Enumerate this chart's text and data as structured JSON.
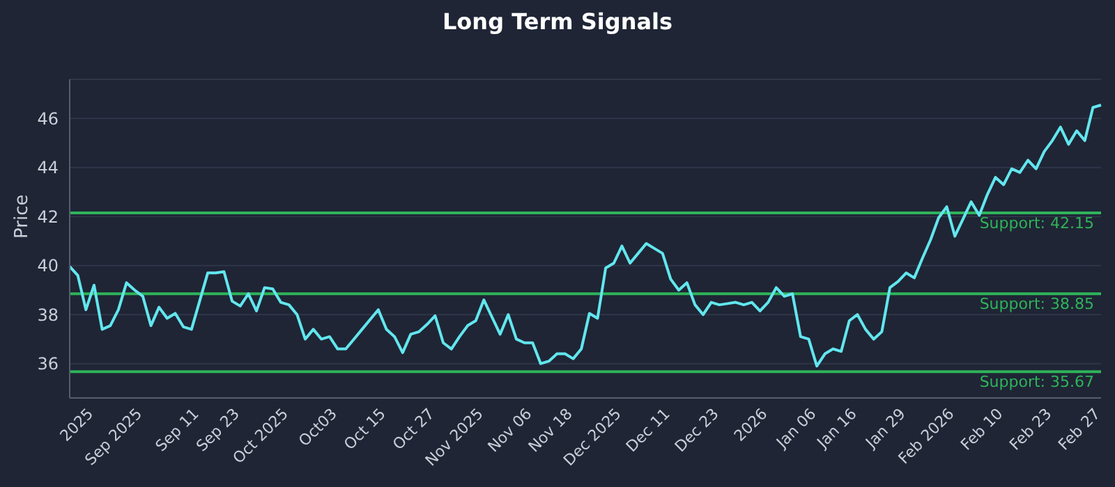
{
  "chart_data": {
    "type": "line",
    "title": "Long Term Signals",
    "ylabel": "Price",
    "categories": [
      null,
      null,
      null,
      "2025",
      null,
      null,
      null,
      null,
      null,
      "Sep 2025",
      null,
      null,
      null,
      null,
      null,
      null,
      "Sep 11",
      null,
      null,
      null,
      null,
      "Sep 23",
      null,
      null,
      null,
      null,
      null,
      "Oct 2025",
      null,
      null,
      null,
      null,
      null,
      "Oct03",
      null,
      null,
      null,
      null,
      null,
      "Oct 15",
      null,
      null,
      null,
      null,
      null,
      "Oct 27",
      null,
      null,
      null,
      null,
      null,
      "Nov 2025",
      null,
      null,
      null,
      null,
      null,
      "Nov 06",
      null,
      null,
      null,
      null,
      "Nov 18",
      null,
      null,
      null,
      null,
      null,
      "Dec 2025",
      null,
      null,
      null,
      null,
      null,
      "Dec 11",
      null,
      null,
      null,
      null,
      null,
      "Dec 23",
      null,
      null,
      null,
      null,
      null,
      "2026",
      null,
      null,
      null,
      null,
      null,
      "Jan 06",
      null,
      null,
      null,
      null,
      "Jan 16",
      null,
      null,
      null,
      null,
      null,
      "Jan 29",
      null,
      null,
      null,
      null,
      null,
      "Feb 2026",
      null,
      null,
      null,
      null,
      null,
      "Feb 10",
      null,
      null,
      null,
      null,
      null,
      "Feb 23",
      null,
      null,
      null,
      null,
      null,
      "Feb 27"
    ],
    "series": [
      {
        "color": "#62e6ee",
        "values": [
          39.96,
          39.6,
          38.2,
          39.2,
          37.4,
          37.55,
          38.2,
          39.3,
          39.0,
          38.75,
          37.55,
          38.3,
          37.85,
          38.05,
          37.5,
          37.4,
          38.55,
          39.7,
          39.7,
          39.75,
          38.55,
          38.35,
          38.85,
          38.15,
          39.1,
          39.05,
          38.5,
          38.4,
          38.0,
          37.0,
          37.4,
          37.0,
          37.1,
          36.6,
          36.6,
          37.0,
          37.4,
          37.8,
          38.2,
          37.4,
          37.1,
          36.45,
          37.2,
          37.3,
          37.6,
          37.95,
          36.85,
          36.6,
          37.1,
          37.55,
          37.75,
          38.6,
          37.9,
          37.2,
          38.0,
          37.0,
          36.85,
          36.85,
          36.0,
          36.1,
          36.4,
          36.4,
          36.2,
          36.6,
          38.05,
          37.85,
          39.9,
          40.1,
          40.8,
          40.1,
          40.5,
          40.9,
          40.7,
          40.5,
          39.45,
          39.0,
          39.3,
          38.4,
          38.0,
          38.5,
          38.4,
          38.45,
          38.5,
          38.4,
          38.5,
          38.15,
          38.5,
          39.1,
          38.75,
          38.85,
          37.1,
          37.0,
          35.9,
          36.4,
          36.6,
          36.5,
          37.75,
          38.0,
          37.4,
          37.0,
          37.3,
          39.1,
          39.35,
          39.7,
          39.5,
          40.3,
          41.05,
          41.95,
          42.4,
          41.2,
          41.9,
          42.6,
          42.05,
          42.9,
          43.6,
          43.3,
          43.95,
          43.8,
          44.3,
          43.95,
          44.65,
          45.1,
          45.65,
          44.95,
          45.5,
          45.1,
          46.45,
          46.55
        ]
      }
    ],
    "ylim": [
      34.6,
      47.6
    ],
    "yticks": [
      36,
      38,
      40,
      42,
      44,
      46
    ],
    "grid": "y",
    "marker": "none",
    "line_style": "solid",
    "ref_lines": [
      {
        "axis": "y",
        "value": 42.15,
        "label": "Support: 42.15",
        "color": "#2fb35a"
      },
      {
        "axis": "y",
        "value": 38.85,
        "label": "Support: 38.85",
        "color": "#2fb35a"
      },
      {
        "axis": "y",
        "value": 35.67,
        "label": "Support: 35.67",
        "color": "#2fb35a"
      }
    ]
  }
}
